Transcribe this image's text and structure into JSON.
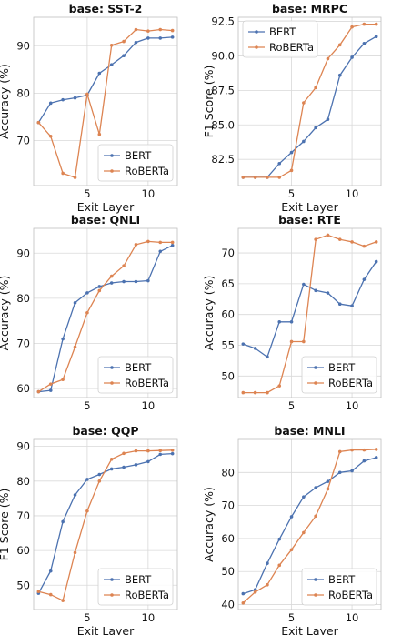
{
  "colors": {
    "bert": "#4c72b0",
    "roberta": "#dd8452"
  },
  "chart_data": [
    {
      "type": "line",
      "title": "base: SST-2",
      "xlabel": "Exit Layer",
      "ylabel": "Accuracy (%)",
      "xlim": [
        0.6,
        12.4
      ],
      "ylim": [
        60.5,
        96
      ],
      "xticks": [
        5,
        10
      ],
      "xtick_labels": [
        "5",
        "10"
      ],
      "yticks": [
        70,
        80,
        90
      ],
      "ytick_labels": [
        "70",
        "80",
        "90"
      ],
      "legend_position": "lower-right",
      "x": [
        1,
        2,
        3,
        4,
        5,
        6,
        7,
        8,
        9,
        10,
        11,
        12
      ],
      "series": [
        {
          "name": "BERT",
          "color": "#4c72b0",
          "values": [
            73.8,
            77.9,
            78.6,
            79.0,
            79.6,
            84.2,
            86.0,
            87.9,
            90.7,
            91.6,
            91.6,
            91.8
          ]
        },
        {
          "name": "RoBERTa",
          "color": "#dd8452",
          "values": [
            73.8,
            70.9,
            63.1,
            62.2,
            79.8,
            71.3,
            90.1,
            90.9,
            93.4,
            93.1,
            93.4,
            93.2
          ]
        }
      ]
    },
    {
      "type": "line",
      "title": "base: MRPC",
      "xlabel": "Exit Layer",
      "ylabel": "F1 Score (%)",
      "xlim": [
        0.6,
        12.4
      ],
      "ylim": [
        80.6,
        92.8
      ],
      "xticks": [
        5,
        10
      ],
      "xtick_labels": [
        "5",
        "10"
      ],
      "yticks": [
        82.5,
        85.0,
        87.5,
        90.0,
        92.5
      ],
      "ytick_labels": [
        "82.5",
        "85.0",
        "87.5",
        "90.0",
        "92.5"
      ],
      "legend_position": "upper-left",
      "x": [
        1,
        2,
        3,
        4,
        5,
        6,
        7,
        8,
        9,
        10,
        11,
        12
      ],
      "series": [
        {
          "name": "BERT",
          "color": "#4c72b0",
          "values": [
            81.2,
            81.2,
            81.2,
            82.2,
            83.0,
            83.8,
            84.8,
            85.4,
            88.6,
            89.9,
            90.9,
            91.4
          ]
        },
        {
          "name": "RoBERTa",
          "color": "#dd8452",
          "values": [
            81.2,
            81.2,
            81.2,
            81.2,
            81.7,
            86.6,
            87.7,
            89.8,
            90.8,
            92.1,
            92.3,
            92.3
          ]
        }
      ]
    },
    {
      "type": "line",
      "title": "base: QNLI",
      "xlabel": "",
      "ylabel": "Accuracy (%)",
      "xlim": [
        0.6,
        12.4
      ],
      "ylim": [
        58,
        95.5
      ],
      "xticks": [
        5,
        10
      ],
      "xtick_labels": [
        "5",
        "10"
      ],
      "yticks": [
        60,
        70,
        80,
        90
      ],
      "ytick_labels": [
        "60",
        "70",
        "80",
        "90"
      ],
      "legend_position": "lower-right",
      "x": [
        1,
        2,
        3,
        4,
        5,
        6,
        7,
        8,
        9,
        10,
        11,
        12
      ],
      "series": [
        {
          "name": "BERT",
          "color": "#4c72b0",
          "values": [
            59.3,
            59.6,
            71.0,
            79.0,
            81.2,
            82.6,
            83.4,
            83.7,
            83.7,
            83.9,
            90.4,
            91.7
          ]
        },
        {
          "name": "RoBERTa",
          "color": "#dd8452",
          "values": [
            59.3,
            61.0,
            62.0,
            69.2,
            76.8,
            81.7,
            84.9,
            87.2,
            91.9,
            92.6,
            92.4,
            92.4
          ]
        }
      ]
    },
    {
      "type": "line",
      "title": "base: RTE",
      "xlabel": "",
      "ylabel": "Accuracy (%)",
      "xlim": [
        0.6,
        12.4
      ],
      "ylim": [
        46.5,
        74
      ],
      "xticks": [
        5,
        10
      ],
      "xtick_labels": [
        "5",
        "10"
      ],
      "yticks": [
        50,
        55,
        60,
        65,
        70
      ],
      "ytick_labels": [
        "50",
        "55",
        "60",
        "65",
        "70"
      ],
      "legend_position": "lower-right",
      "x": [
        1,
        2,
        3,
        4,
        5,
        6,
        7,
        8,
        9,
        10,
        11,
        12
      ],
      "series": [
        {
          "name": "BERT",
          "color": "#4c72b0",
          "values": [
            55.2,
            54.5,
            53.1,
            58.8,
            58.8,
            64.9,
            63.9,
            63.5,
            61.7,
            61.4,
            65.7,
            68.6
          ]
        },
        {
          "name": "RoBERTa",
          "color": "#dd8452",
          "values": [
            47.3,
            47.3,
            47.3,
            48.4,
            55.6,
            55.6,
            72.2,
            72.9,
            72.2,
            71.8,
            71.1,
            71.8
          ]
        }
      ]
    },
    {
      "type": "line",
      "title": "base: QQP",
      "xlabel": "Exit Layer",
      "ylabel": "F1 Score (%)",
      "xlim": [
        0.6,
        12.4
      ],
      "ylim": [
        43,
        92
      ],
      "xticks": [
        5,
        10
      ],
      "xtick_labels": [
        "5",
        "10"
      ],
      "yticks": [
        50,
        60,
        70,
        80,
        90
      ],
      "ytick_labels": [
        "50",
        "60",
        "70",
        "80",
        "90"
      ],
      "legend_position": "lower-right",
      "x": [
        1,
        2,
        3,
        4,
        5,
        6,
        7,
        8,
        9,
        10,
        11,
        12
      ],
      "series": [
        {
          "name": "BERT",
          "color": "#4c72b0",
          "values": [
            47.7,
            54.1,
            68.3,
            76.0,
            80.5,
            81.9,
            83.5,
            84.0,
            84.7,
            85.6,
            87.7,
            87.9
          ]
        },
        {
          "name": "RoBERTa",
          "color": "#dd8452",
          "values": [
            48.2,
            47.3,
            45.6,
            59.4,
            71.4,
            80.0,
            86.3,
            88.0,
            88.7,
            88.7,
            88.8,
            88.9
          ]
        }
      ]
    },
    {
      "type": "line",
      "title": "base: MNLI",
      "xlabel": "Exit Layer",
      "ylabel": "Accuracy (%)",
      "xlim": [
        0.6,
        12.4
      ],
      "ylim": [
        38.5,
        90
      ],
      "xticks": [
        5,
        10
      ],
      "xtick_labels": [
        "5",
        "10"
      ],
      "yticks": [
        40,
        50,
        60,
        70,
        80
      ],
      "ytick_labels": [
        "40",
        "50",
        "60",
        "70",
        "80"
      ],
      "legend_position": "lower-right",
      "x": [
        1,
        2,
        3,
        4,
        5,
        6,
        7,
        8,
        9,
        10,
        11,
        12
      ],
      "series": [
        {
          "name": "BERT",
          "color": "#4c72b0",
          "values": [
            43.3,
            44.5,
            52.5,
            59.8,
            66.6,
            72.6,
            75.4,
            77.3,
            80.0,
            80.5,
            83.5,
            84.5
          ]
        },
        {
          "name": "RoBERTa",
          "color": "#dd8452",
          "values": [
            40.5,
            43.8,
            46.0,
            51.9,
            56.6,
            61.8,
            66.8,
            75.0,
            86.3,
            86.8,
            86.8,
            87.0
          ]
        }
      ]
    }
  ]
}
